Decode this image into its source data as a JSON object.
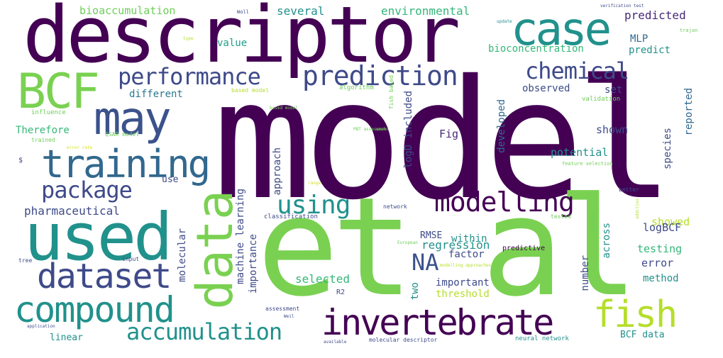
{
  "palette": {
    "dark_purple": "#440154",
    "indigo": "#3e4a89",
    "blue": "#31688e",
    "teal": "#21918c",
    "green": "#35b779",
    "lime": "#90d743",
    "yellow": "#d8e219"
  },
  "words": [
    {
      "text": "model",
      "size": "largest",
      "color": "#440154"
    },
    {
      "text": "et al",
      "size": "largest",
      "color": "#7ad151"
    },
    {
      "text": "descriptor",
      "size": "very large",
      "color": "#440154"
    },
    {
      "text": "used",
      "size": "large",
      "color": "#21918c"
    },
    {
      "text": "data",
      "size": "large",
      "color": "#7ad151"
    },
    {
      "text": "BCF",
      "size": "large",
      "color": "#7ad151"
    },
    {
      "text": "case",
      "size": "large",
      "color": "#21918c"
    },
    {
      "text": "may",
      "size": "large",
      "color": "#3b528b"
    },
    {
      "text": "training",
      "size": "large",
      "color": "#31688e"
    },
    {
      "text": "compound",
      "size": "large",
      "color": "#21918c"
    },
    {
      "text": "invertebrate",
      "size": "large",
      "color": "#440154"
    },
    {
      "text": "dataset",
      "size": "large",
      "color": "#3e4a89"
    },
    {
      "text": "fish",
      "size": "large",
      "color": "#b5de2b"
    },
    {
      "text": "accumulation",
      "size": "medium",
      "color": "#21918c"
    },
    {
      "text": "modelling",
      "size": "medium",
      "color": "#440154"
    },
    {
      "text": "package",
      "size": "medium",
      "color": "#3e4a89"
    },
    {
      "text": "performance",
      "size": "medium",
      "color": "#3e4a89"
    },
    {
      "text": "prediction",
      "size": "medium",
      "color": "#3e4a89"
    },
    {
      "text": "chemical",
      "size": "medium",
      "color": "#3e4a89"
    },
    {
      "text": "using",
      "size": "medium",
      "color": "#21918c"
    },
    {
      "text": "NA",
      "size": "medium",
      "color": "#3b528b"
    },
    {
      "text": "pharmaceutical",
      "size": "small",
      "color": "#3e4a89"
    },
    {
      "text": "bioaccumulation",
      "size": "small",
      "color": "#6ece58"
    },
    {
      "text": "several",
      "size": "small",
      "color": "#21918c"
    },
    {
      "text": "environmental",
      "size": "small",
      "color": "#35b779"
    },
    {
      "text": "predicted",
      "size": "small",
      "color": "#482878"
    },
    {
      "text": "MLP",
      "size": "small",
      "color": "#31688e"
    },
    {
      "text": "predict",
      "size": "small",
      "color": "#21918c"
    },
    {
      "text": "value",
      "size": "small",
      "color": "#1f9e89"
    },
    {
      "text": "bioconcentration",
      "size": "small",
      "color": "#35b779"
    },
    {
      "text": "different",
      "size": "small",
      "color": "#2a788e"
    },
    {
      "text": "observed",
      "size": "small",
      "color": "#3e4a89"
    },
    {
      "text": "set",
      "size": "small",
      "color": "#3e4a89"
    },
    {
      "text": "Therefore",
      "size": "small",
      "color": "#35b779"
    },
    {
      "text": "Fig",
      "size": "small",
      "color": "#482878"
    },
    {
      "text": "shown",
      "size": "small",
      "color": "#3e4a89"
    },
    {
      "text": "potential",
      "size": "small",
      "color": "#21918c"
    },
    {
      "text": "developed",
      "size": "small",
      "color": "#31688e"
    },
    {
      "text": "species",
      "size": "small",
      "color": "#3e4a89"
    },
    {
      "text": "reported",
      "size": "small",
      "color": "#31688e"
    },
    {
      "text": "approach",
      "size": "small",
      "color": "#3e4a89"
    },
    {
      "text": "logD included",
      "size": "small",
      "color": "#3e4a89"
    },
    {
      "text": "machine learning",
      "size": "small",
      "color": "#3e4a89"
    },
    {
      "text": "importance",
      "size": "small",
      "color": "#3e4a89"
    },
    {
      "text": "molecular",
      "size": "small",
      "color": "#3e4a89"
    },
    {
      "text": "RMSE",
      "size": "small",
      "color": "#3e4a89"
    },
    {
      "text": "within",
      "size": "small",
      "color": "#21918c"
    },
    {
      "text": "showed",
      "size": "small",
      "color": "#b5de2b"
    },
    {
      "text": "logBCF",
      "size": "small",
      "color": "#3e4a89"
    },
    {
      "text": "regression",
      "size": "small",
      "color": "#21918c"
    },
    {
      "text": "factor",
      "size": "small",
      "color": "#3e4a89"
    },
    {
      "text": "across",
      "size": "small",
      "color": "#21918c"
    },
    {
      "text": "testing",
      "size": "small",
      "color": "#35b779"
    },
    {
      "text": "error",
      "size": "small",
      "color": "#3e4a89"
    },
    {
      "text": "number",
      "size": "small",
      "color": "#3e4a89"
    },
    {
      "text": "method",
      "size": "small",
      "color": "#21918c"
    },
    {
      "text": "selected",
      "size": "small",
      "color": "#35b779"
    },
    {
      "text": "important",
      "size": "small",
      "color": "#3e4a89"
    },
    {
      "text": "threshold",
      "size": "small",
      "color": "#b5de2b"
    },
    {
      "text": "two",
      "size": "small",
      "color": "#21918c"
    },
    {
      "text": "linear",
      "size": "small",
      "color": "#21918c"
    },
    {
      "text": "BCF data",
      "size": "small",
      "color": "#21918c"
    },
    {
      "text": "use",
      "size": "small",
      "color": "#3e4a89"
    },
    {
      "text": "influence",
      "size": "tiny",
      "color": "#6ece58"
    },
    {
      "text": "QSAR model",
      "size": "tiny",
      "color": "#6ece58"
    },
    {
      "text": "trained",
      "size": "tiny",
      "color": "#6ece58"
    },
    {
      "text": "$",
      "size": "tiny",
      "color": "#3e4a89"
    },
    {
      "text": "based model",
      "size": "tiny",
      "color": "#b5de2b"
    },
    {
      "text": "algorithm",
      "size": "tiny",
      "color": "#6ece58"
    },
    {
      "text": "validation",
      "size": "tiny",
      "color": "#6ece58"
    },
    {
      "text": "feature selection",
      "size": "tiny",
      "color": "#6ece58"
    },
    {
      "text": "network",
      "size": "tiny",
      "color": "#3e4a89"
    },
    {
      "text": "classification",
      "size": "tiny",
      "color": "#3e4a89"
    },
    {
      "text": "tested",
      "size": "tiny",
      "color": "#6ece58"
    },
    {
      "text": "limited",
      "size": "tiny",
      "color": "#6ece58"
    },
    {
      "text": "better",
      "size": "tiny",
      "color": "#3e4a89"
    },
    {
      "text": "predictive",
      "size": "tiny",
      "color": "#440154"
    },
    {
      "text": "modelling approaches",
      "size": "tiny",
      "color": "#b5de2b"
    },
    {
      "text": "European",
      "size": "tiny",
      "color": "#6ece58"
    },
    {
      "text": "R2",
      "size": "tiny",
      "color": "#3e4a89"
    },
    {
      "text": "assessment",
      "size": "tiny",
      "color": "#3e4a89"
    },
    {
      "text": "input",
      "size": "tiny",
      "color": "#3e4a89"
    },
    {
      "text": "tree",
      "size": "tiny",
      "color": "#3e4a89"
    },
    {
      "text": "application",
      "size": "tiny",
      "color": "#3e4a89"
    },
    {
      "text": "available",
      "size": "tiny",
      "color": "#3e4a89"
    },
    {
      "text": "molecular descriptor",
      "size": "tiny",
      "color": "#3e4a89"
    },
    {
      "text": "neural network",
      "size": "tiny",
      "color": "#21918c"
    },
    {
      "text": "verification test",
      "size": "tiny",
      "color": "#3e4a89"
    },
    {
      "text": "update",
      "size": "tiny",
      "color": "#21918c"
    },
    {
      "text": "trajan",
      "size": "tiny",
      "color": "#6ece58"
    },
    {
      "text": "fish based",
      "size": "tiny",
      "color": "#6ece58"
    },
    {
      "text": "PBT assessment",
      "size": "tiny",
      "color": "#6ece58"
    },
    {
      "text": "work",
      "size": "tiny",
      "color": "#6ece58"
    },
    {
      "text": "error rate",
      "size": "tiny",
      "color": "#d8e219"
    },
    {
      "text": "Woll",
      "size": "tiny",
      "color": "#3e4a89"
    },
    {
      "text": "based model",
      "size": "tiny",
      "color": "#6ece58"
    },
    {
      "text": "range",
      "size": "tiny",
      "color": "#d8e219"
    },
    {
      "text": "addition",
      "size": "tiny",
      "color": "#b5de2b"
    },
    {
      "text": "type",
      "size": "tiny",
      "color": "#b5de2b"
    },
    {
      "text": "Weil",
      "size": "tiny",
      "color": "#3e4a89"
    }
  ]
}
